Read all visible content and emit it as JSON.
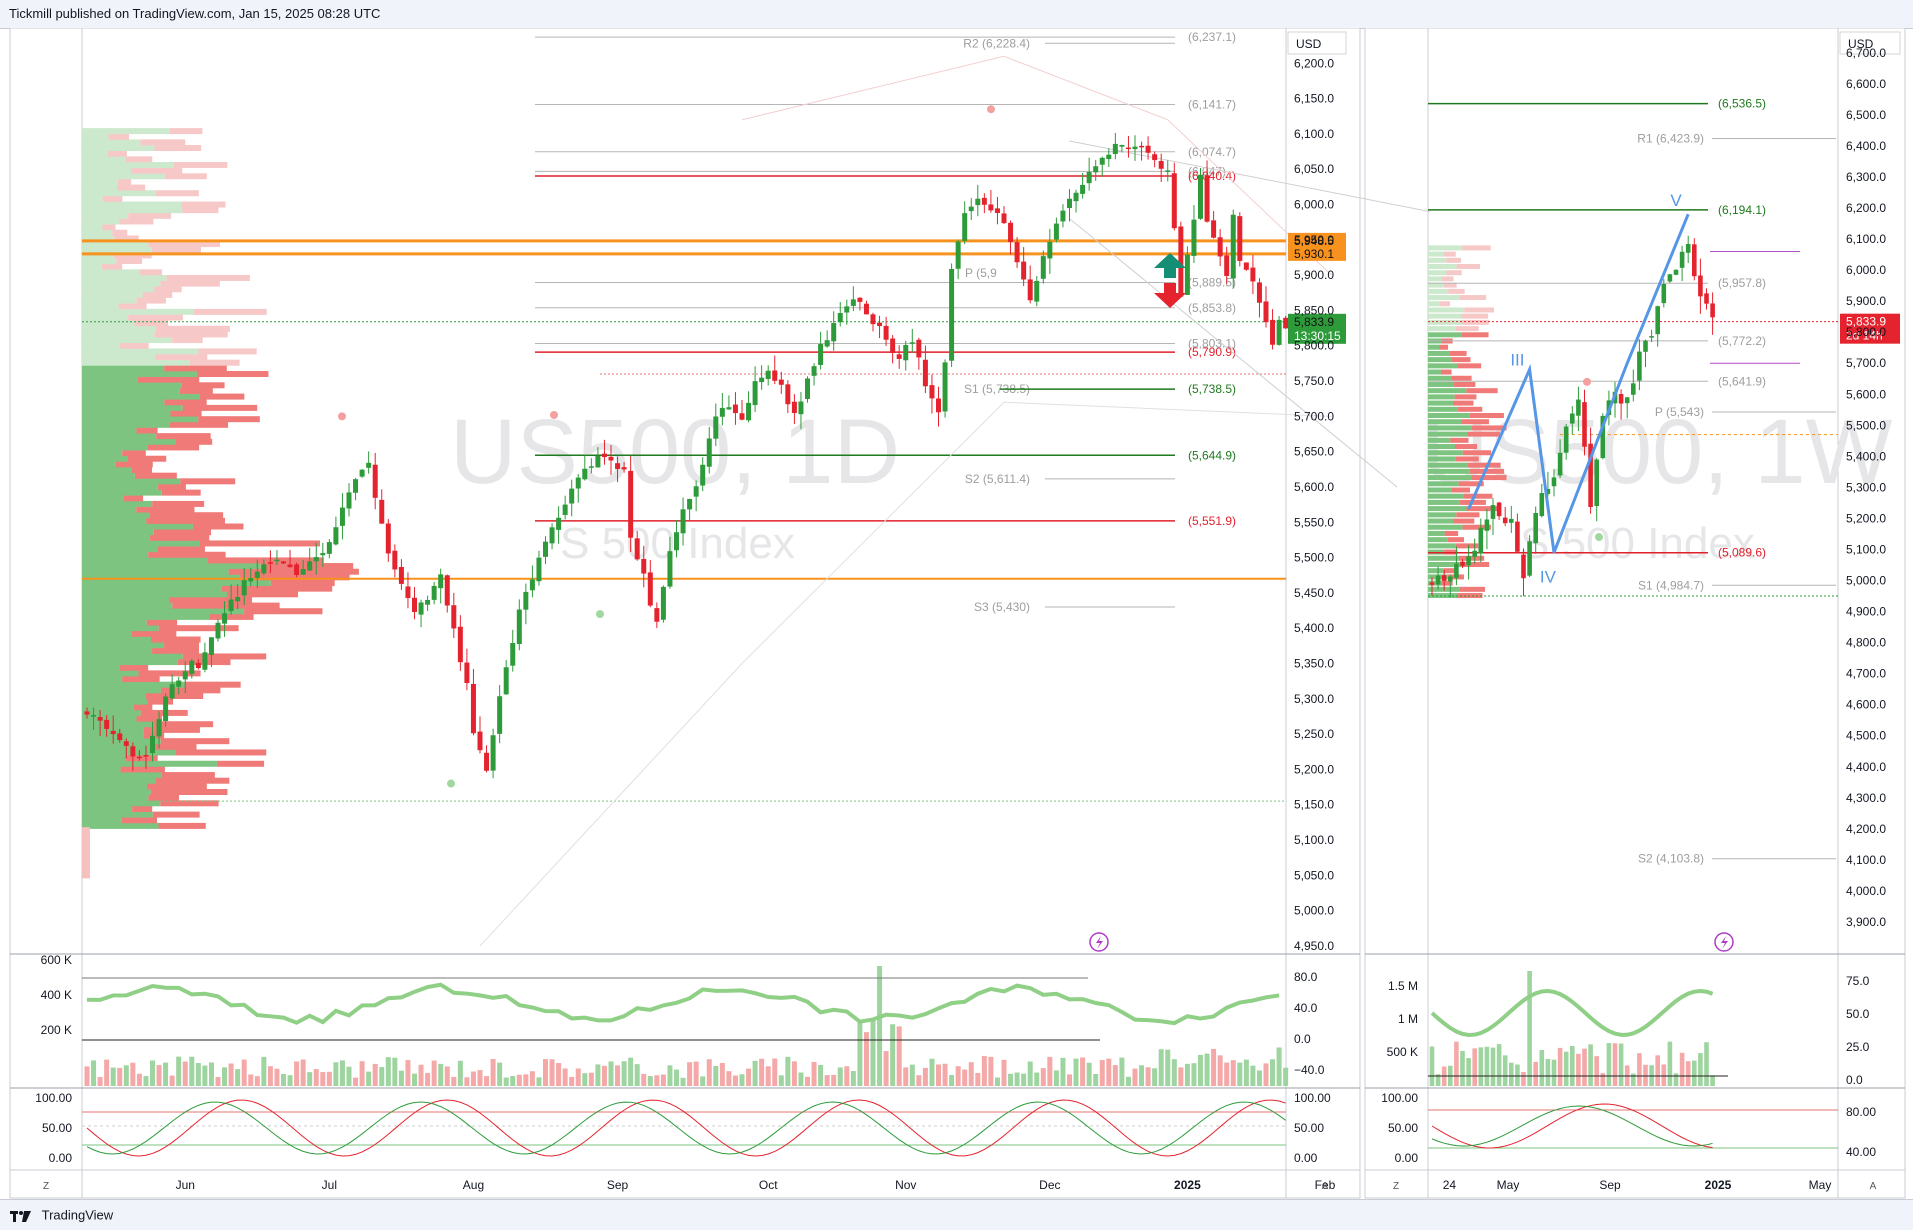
{
  "header": {
    "publisher_text": "Tickmill published on TradingView.com, Jan 15, 2025 08:28 UTC"
  },
  "footer": {
    "brand": "TradingView"
  },
  "colors": {
    "up": "#2e9b3b",
    "down": "#e5232e",
    "orange": "#f7921e",
    "green_level": "#1e7a1e",
    "red_level": "#e0202a",
    "gray_level": "#b5b5b5",
    "purple_level": "#b04dc8",
    "wave": "#5596e6"
  },
  "chart_data": [
    {
      "id": "daily",
      "type": "candlestick",
      "watermark_symbol": "US500, 1D",
      "watermark_name": "S 500 Index",
      "currency": "USD",
      "y_ticks": [
        "6,200.0",
        "6,150.0",
        "6,100.0",
        "6,050.0",
        "6,000.0",
        "5,950.0",
        "5,900.0",
        "5,850.0",
        "5,800.0",
        "5,750.0",
        "5,700.0",
        "5,650.0",
        "5,600.0",
        "5,550.0",
        "5,500.0",
        "5,450.0",
        "5,400.0",
        "5,350.0",
        "5,300.0",
        "5,250.0",
        "5,200.0",
        "5,150.0",
        "5,100.0",
        "5,050.0",
        "5,000.0",
        "4,950.0"
      ],
      "ylim": [
        4940,
        6250
      ],
      "x_ticks": [
        "Jun",
        "Jul",
        "Aug",
        "Sep",
        "Oct",
        "Nov",
        "Dec",
        "2025",
        "Feb",
        "24"
      ],
      "x_tick_index": [
        15,
        37,
        59,
        81,
        104,
        125,
        147,
        168,
        189,
        208
      ],
      "n_bars": 176,
      "segments": [
        [
          0,
          5284
        ],
        [
          5,
          5235
        ],
        [
          9,
          5215
        ],
        [
          12,
          5300
        ],
        [
          15,
          5346
        ],
        [
          17,
          5350
        ],
        [
          22,
          5440
        ],
        [
          24,
          5462
        ],
        [
          28,
          5500
        ],
        [
          32,
          5475
        ],
        [
          36,
          5509
        ],
        [
          38,
          5545
        ],
        [
          41,
          5608
        ],
        [
          43,
          5633
        ],
        [
          44,
          5588
        ],
        [
          46,
          5500
        ],
        [
          48,
          5462
        ],
        [
          50,
          5422
        ],
        [
          52,
          5445
        ],
        [
          54,
          5470
        ],
        [
          56,
          5398
        ],
        [
          57,
          5346
        ],
        [
          58,
          5317
        ],
        [
          59,
          5257
        ],
        [
          60,
          5230
        ],
        [
          61,
          5200
        ],
        [
          62,
          5245
        ],
        [
          63,
          5300
        ],
        [
          64,
          5345
        ],
        [
          66,
          5420
        ],
        [
          68,
          5472
        ],
        [
          70,
          5526
        ],
        [
          72,
          5560
        ],
        [
          74,
          5597
        ],
        [
          76,
          5625
        ],
        [
          78,
          5644
        ],
        [
          80,
          5632
        ],
        [
          82,
          5622
        ],
        [
          83,
          5528
        ],
        [
          84,
          5504
        ],
        [
          85,
          5472
        ],
        [
          86,
          5430
        ],
        [
          87,
          5415
        ],
        [
          88,
          5465
        ],
        [
          90,
          5540
        ],
        [
          92,
          5588
        ],
        [
          94,
          5626
        ],
        [
          96,
          5702
        ],
        [
          98,
          5710
        ],
        [
          100,
          5694
        ],
        [
          102,
          5746
        ],
        [
          104,
          5762
        ],
        [
          106,
          5745
        ],
        [
          108,
          5700
        ],
        [
          110,
          5755
        ],
        [
          112,
          5797
        ],
        [
          114,
          5827
        ],
        [
          116,
          5860
        ],
        [
          118,
          5867
        ],
        [
          120,
          5835
        ],
        [
          122,
          5810
        ],
        [
          124,
          5780
        ],
        [
          126,
          5810
        ],
        [
          128,
          5745
        ],
        [
          129,
          5720
        ],
        [
          130,
          5705
        ],
        [
          131,
          5780
        ],
        [
          132,
          5915
        ],
        [
          134,
          5990
        ],
        [
          136,
          6010
        ],
        [
          138,
          5995
        ],
        [
          140,
          5970
        ],
        [
          142,
          5920
        ],
        [
          144,
          5870
        ],
        [
          145,
          5892
        ],
        [
          147,
          5950
        ],
        [
          149,
          5985
        ],
        [
          151,
          6020
        ],
        [
          153,
          6045
        ],
        [
          155,
          6070
        ],
        [
          157,
          6085
        ],
        [
          159,
          6075
        ],
        [
          161,
          6080
        ],
        [
          163,
          6060
        ],
        [
          165,
          6050
        ],
        [
          167,
          5872
        ],
        [
          168,
          5930
        ],
        [
          170,
          6040
        ],
        [
          171,
          5975
        ],
        [
          173,
          5922
        ],
        [
          174,
          5900
        ],
        [
          175,
          5980
        ],
        [
          176,
          5920
        ],
        [
          177,
          5905
        ],
        [
          178,
          5885
        ],
        [
          180,
          5840
        ],
        [
          181,
          5800
        ],
        [
          182,
          5842
        ],
        [
          183,
          5830
        ]
      ],
      "last_index": 183,
      "levels": [
        {
          "label": "R2 (6,228.4)",
          "value": 6228.4,
          "kind": "gray"
        },
        {
          "label": "(6,237.1)",
          "value": 6237.1,
          "kind": "gray"
        },
        {
          "label": "(6,141.7)",
          "value": 6141.7,
          "kind": "gray"
        },
        {
          "label": "(6,074.7)",
          "value": 6074.7,
          "kind": "gray"
        },
        {
          "label": "(6,047)",
          "value": 6047,
          "kind": "gray"
        },
        {
          "label": "(6,040.4)",
          "value": 6040.4,
          "kind": "red"
        },
        {
          "label": "(5,889.5)",
          "value": 5889.5,
          "kind": "gray"
        },
        {
          "label": "(5,853.8)",
          "value": 5853.8,
          "kind": "gray"
        },
        {
          "label": "(5,803.1)",
          "value": 5803.1,
          "kind": "gray"
        },
        {
          "label": "(5,790.9)",
          "value": 5790.9,
          "kind": "red"
        },
        {
          "label": "S1 (5,738.5)",
          "value": 5738.5,
          "kind": "gray"
        },
        {
          "label": "(5,738.5)",
          "value": 5738.5,
          "kind": "green"
        },
        {
          "label": "(5,644.9)",
          "value": 5644.9,
          "kind": "green"
        },
        {
          "label": "S2 (5,611.4)",
          "value": 5611.4,
          "kind": "gray"
        },
        {
          "label": "(5,551.9)",
          "value": 5551.9,
          "kind": "red"
        },
        {
          "label": "S3 (5,430)",
          "value": 5430,
          "kind": "gray"
        }
      ],
      "orange_levels": [
        5948.5,
        5930.1,
        5470
      ],
      "price_tags": [
        {
          "value": 5948.5,
          "text": "5,948.5",
          "kind": "orange"
        },
        {
          "value": 5930.1,
          "text": "5,930.1",
          "kind": "orange"
        },
        {
          "value": 5833.9,
          "text": "5,833.9",
          "sub": "13:30:15",
          "kind": "green"
        }
      ],
      "pivot_label": "P (5,9",
      "indicator1": {
        "y_ticks_left": [
          "600 K",
          "400 K",
          "200 K"
        ],
        "y_ticks_right": [
          "80.0",
          "40.0",
          "0.0",
          "−40.0"
        ]
      },
      "indicator2": {
        "y_ticks_left": [
          "100.00",
          "50.00",
          "0.00"
        ],
        "y_ticks_right": [
          "100.00",
          "50.00",
          "0.00"
        ]
      }
    },
    {
      "id": "weekly",
      "type": "candlestick",
      "watermark_symbol": "US500, 1W",
      "watermark_name": "S 500 Index",
      "currency": "USD",
      "y_ticks": [
        "6,700.0",
        "6,600.0",
        "6,500.0",
        "6,400.0",
        "6,300.0",
        "6,200.0",
        "6,100.0",
        "6,000.0",
        "5,900.0",
        "5,800.0",
        "5,700.0",
        "5,600.0",
        "5,500.0",
        "5,400.0",
        "5,300.0",
        "5,200.0",
        "5,100.0",
        "5,000.0",
        "4,900.0",
        "4,800.0",
        "4,700.0",
        "4,600.0",
        "4,500.0",
        "4,400.0",
        "4,300.0",
        "4,200.0",
        "4,100.0",
        "4,000.0",
        "3,900.0"
      ],
      "ylim": [
        3800,
        6780
      ],
      "x_ticks": [
        "May",
        "Sep",
        "2025",
        "May"
      ],
      "levels": [
        {
          "label": "(6,536.5)",
          "value": 6536.5,
          "kind": "green"
        },
        {
          "label": "R1 (6,423.9)",
          "value": 6423.9,
          "kind": "gray"
        },
        {
          "label": "(6,194.1)",
          "value": 6194.1,
          "kind": "green"
        },
        {
          "label": "(5,957.8)",
          "value": 5957.8,
          "kind": "gray"
        },
        {
          "label": "(5,772.2)",
          "value": 5772.2,
          "kind": "gray"
        },
        {
          "label": "(5,641.9)",
          "value": 5641.9,
          "kind": "gray"
        },
        {
          "label": "P (5,543)",
          "value": 5543,
          "kind": "gray"
        },
        {
          "label": "(5,089.6)",
          "value": 5089.6,
          "kind": "red"
        },
        {
          "label": "S1 (4,984.7)",
          "value": 4984.7,
          "kind": "gray"
        },
        {
          "label": "S2 (4,103.8)",
          "value": 4103.8,
          "kind": "gray"
        }
      ],
      "waves": [
        {
          "label": "III",
          "value": 5680
        },
        {
          "label": "IV",
          "value": 5090
        },
        {
          "label": "V",
          "value": 6180
        }
      ],
      "price_tag": {
        "text": "5,833.9",
        "sub": "2d 14h",
        "value": 5833.9
      },
      "indicator1": {
        "y_ticks_left": [
          "1.5 M",
          "1 M",
          "500 K"
        ],
        "y_ticks_right": [
          "75.0",
          "50.0",
          "25.0",
          "0.0"
        ]
      },
      "indicator2": {
        "y_ticks_left": [
          "100.00",
          "50.00",
          "0.00"
        ],
        "y_ticks_right": [
          "80.00",
          "40.00"
        ]
      }
    }
  ]
}
